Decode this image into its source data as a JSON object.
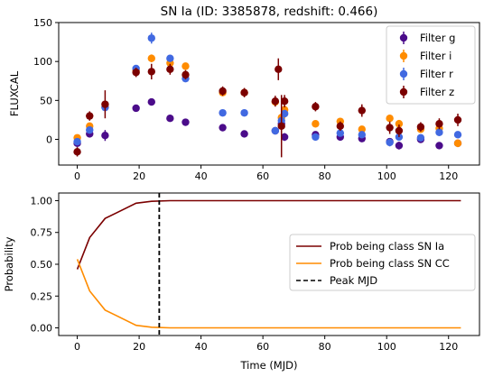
{
  "chart_data": [
    {
      "type": "scatter",
      "title": "SN Ia (ID: 3385878, redshift: 0.466)",
      "xlabel": "",
      "ylabel": "FLUXCAL",
      "xlim": [
        -6,
        130
      ],
      "ylim": [
        -33,
        150
      ],
      "x_ticks": [
        0,
        20,
        40,
        60,
        80,
        100,
        120
      ],
      "y_ticks": [
        0,
        50,
        100,
        150
      ],
      "legend_position": "top-right",
      "series": [
        {
          "name": "Filter g",
          "color": "#4b0c8a",
          "points": [
            [
              0,
              -5,
              4
            ],
            [
              4,
              7,
              4
            ],
            [
              9,
              5,
              7
            ],
            [
              19,
              40,
              4
            ],
            [
              24,
              48,
              4
            ],
            [
              30,
              27,
              4
            ],
            [
              35,
              22,
              4
            ],
            [
              47,
              15,
              4
            ],
            [
              54,
              7,
              4
            ],
            [
              64,
              11,
              4
            ],
            [
              66,
              20,
              6
            ],
            [
              67,
              3,
              5
            ],
            [
              77,
              6,
              4
            ],
            [
              85,
              3,
              4
            ],
            [
              92,
              1,
              4
            ],
            [
              101,
              -3,
              4
            ],
            [
              104,
              -8,
              5
            ],
            [
              111,
              0,
              4
            ],
            [
              117,
              -8,
              4
            ],
            [
              123,
              -5,
              4
            ]
          ]
        },
        {
          "name": "Filter i",
          "color": "#ff8c00",
          "points": [
            [
              0,
              2,
              4
            ],
            [
              4,
              17,
              4
            ],
            [
              9,
              42,
              5
            ],
            [
              19,
              88,
              4
            ],
            [
              24,
              104,
              5
            ],
            [
              30,
              98,
              4
            ],
            [
              35,
              94,
              4
            ],
            [
              47,
              60,
              4
            ],
            [
              54,
              60,
              4
            ],
            [
              64,
              48,
              4
            ],
            [
              66,
              28,
              6
            ],
            [
              67,
              38,
              5
            ],
            [
              77,
              20,
              4
            ],
            [
              85,
              23,
              4
            ],
            [
              92,
              13,
              4
            ],
            [
              101,
              27,
              4
            ],
            [
              104,
              20,
              5
            ],
            [
              111,
              13,
              4
            ],
            [
              117,
              14,
              4
            ],
            [
              123,
              -5,
              5
            ]
          ]
        },
        {
          "name": "Filter r",
          "color": "#4169e1",
          "points": [
            [
              0,
              -3,
              4
            ],
            [
              4,
              12,
              4
            ],
            [
              9,
              41,
              5
            ],
            [
              19,
              91,
              4
            ],
            [
              24,
              130,
              7
            ],
            [
              30,
              104,
              4
            ],
            [
              35,
              78,
              4
            ],
            [
              47,
              34,
              4
            ],
            [
              54,
              34,
              4
            ],
            [
              64,
              11,
              4
            ],
            [
              66,
              24,
              5
            ],
            [
              67,
              33,
              5
            ],
            [
              77,
              3,
              4
            ],
            [
              85,
              8,
              4
            ],
            [
              92,
              6,
              4
            ],
            [
              101,
              -4,
              5
            ],
            [
              104,
              3,
              4
            ],
            [
              111,
              2,
              4
            ],
            [
              117,
              9,
              4
            ],
            [
              123,
              6,
              4
            ]
          ]
        },
        {
          "name": "Filter z",
          "color": "#7b0000",
          "points": [
            [
              0,
              -16,
              6
            ],
            [
              4,
              30,
              6
            ],
            [
              9,
              45,
              18
            ],
            [
              19,
              86,
              6
            ],
            [
              24,
              87,
              10
            ],
            [
              30,
              90,
              7
            ],
            [
              35,
              83,
              6
            ],
            [
              47,
              62,
              6
            ],
            [
              54,
              60,
              6
            ],
            [
              64,
              49,
              7
            ],
            [
              66,
              17,
              40
            ],
            [
              67,
              49,
              8
            ],
            [
              65,
              90,
              14
            ],
            [
              77,
              42,
              6
            ],
            [
              85,
              17,
              6
            ],
            [
              92,
              37,
              8
            ],
            [
              101,
              15,
              8
            ],
            [
              104,
              11,
              8
            ],
            [
              111,
              16,
              6
            ],
            [
              117,
              20,
              7
            ],
            [
              123,
              25,
              8
            ]
          ]
        }
      ]
    },
    {
      "type": "line",
      "title": "",
      "xlabel": "Time (MJD)",
      "ylabel": "Probability",
      "xlim": [
        -6,
        130
      ],
      "ylim": [
        -0.06,
        1.06
      ],
      "x_ticks": [
        0,
        20,
        40,
        60,
        80,
        100,
        120
      ],
      "y_ticks": [
        "0.00",
        "0.25",
        "0.50",
        "0.75",
        "1.00"
      ],
      "legend_position": "center-right",
      "series": [
        {
          "name": "Prob being class SN Ia",
          "color": "#7b0000",
          "x": [
            0,
            4,
            9,
            19,
            24,
            30,
            35,
            47,
            124
          ],
          "y": [
            0.46,
            0.71,
            0.86,
            0.98,
            0.995,
            1.0,
            1.0,
            1.0,
            1.0
          ]
        },
        {
          "name": "Prob being class SN CC",
          "color": "#ff8c00",
          "x": [
            0,
            4,
            9,
            19,
            24,
            30,
            35,
            47,
            124
          ],
          "y": [
            0.54,
            0.29,
            0.14,
            0.02,
            0.005,
            0.0,
            0.0,
            0.0,
            0.0
          ]
        }
      ],
      "vlines": [
        {
          "name": "Peak MJD",
          "x": 26.5,
          "style": "dashed",
          "color": "#000000"
        }
      ]
    }
  ]
}
